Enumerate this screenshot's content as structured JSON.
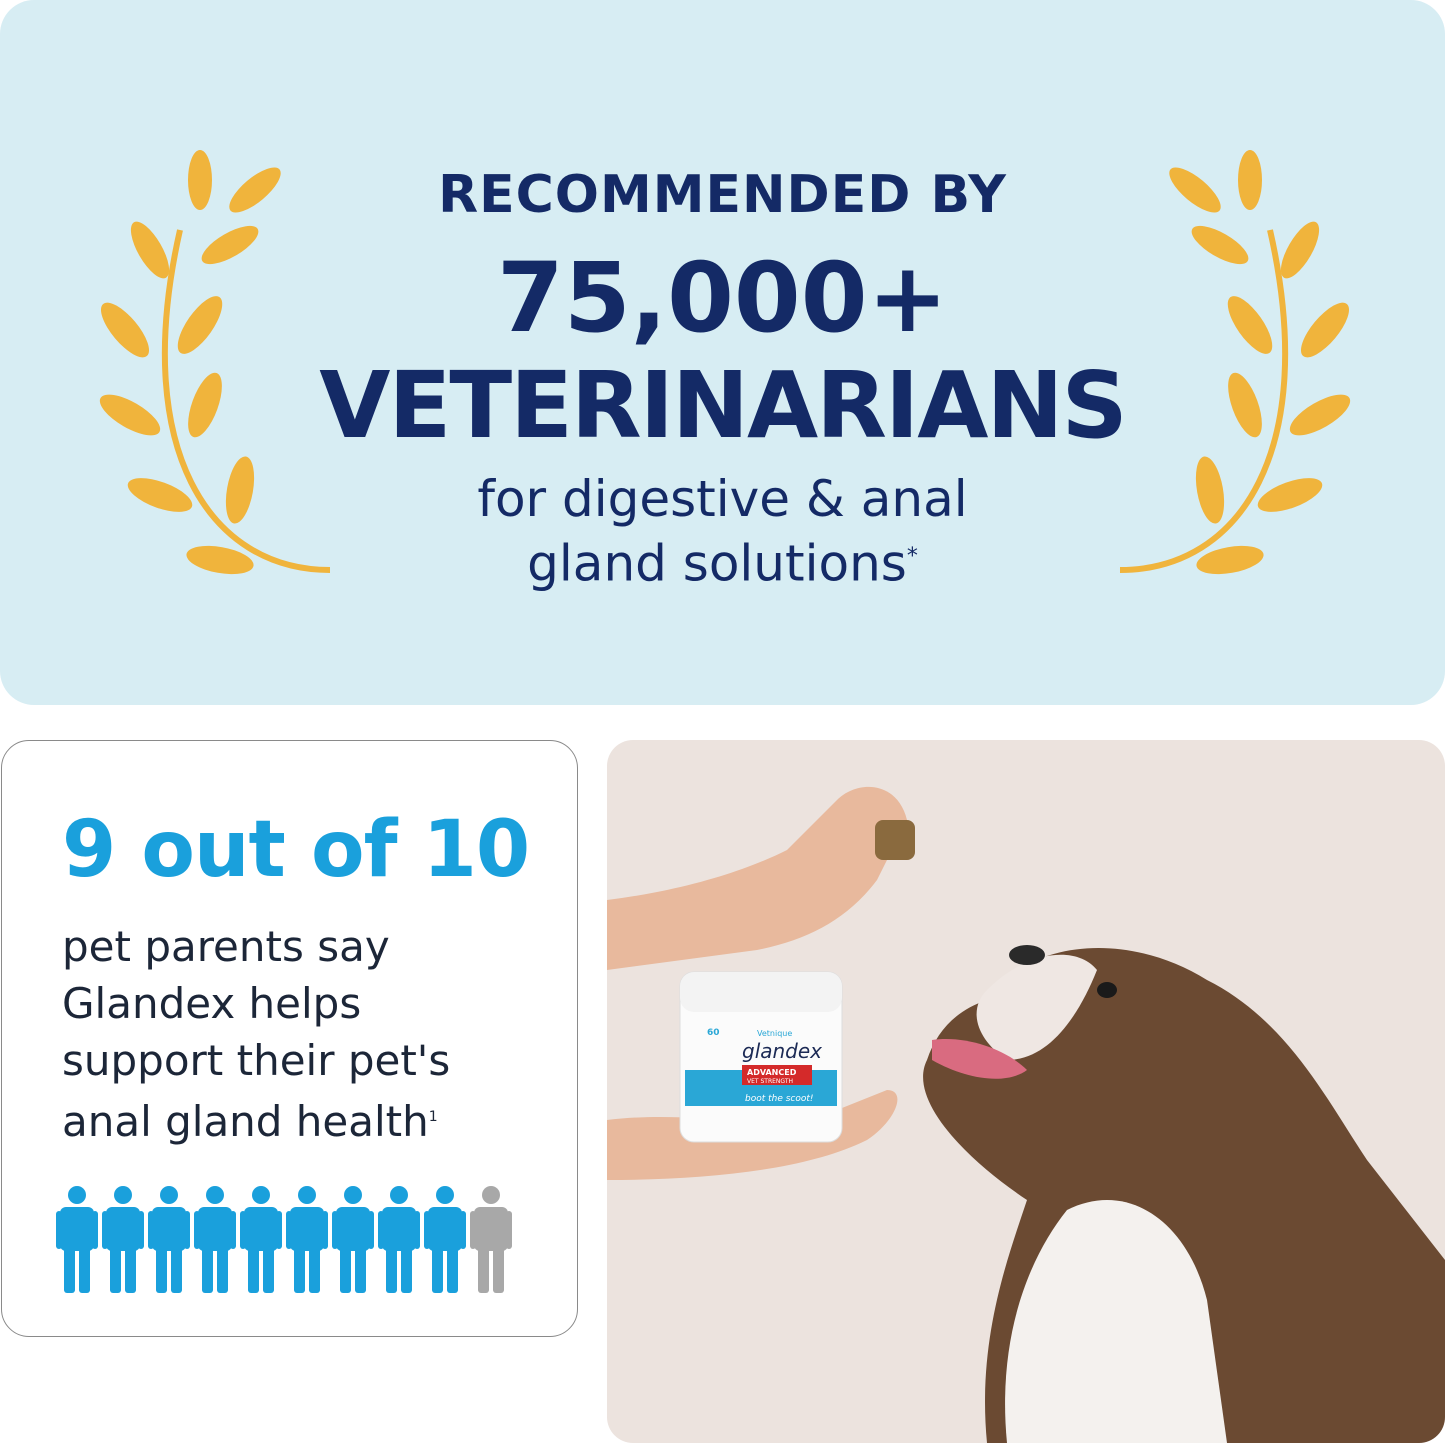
{
  "banner": {
    "line1": "RECOMMENDED BY",
    "count": "75,000+",
    "line2": "VETERINARIANS",
    "sub1": "for digestive & anal",
    "sub2": "gland solutions",
    "footnote_mark": "*"
  },
  "stat_card": {
    "headline": "9 out of 10",
    "lines": [
      "pet parents say",
      "Glandex helps",
      "support their pet's",
      "anal gland health"
    ],
    "footnote_mark": "1",
    "people_total": 10,
    "people_filled": 9
  },
  "product": {
    "brand": "Vetnique",
    "name": "glandex",
    "tagline": "ADVANCED",
    "tagline2": "VET STRENGTH",
    "slogan": "boot the scoot!",
    "count": "60"
  },
  "colors": {
    "navy": "#142a66",
    "blue": "#1aa0dc",
    "gold": "#f0b43c",
    "grey": "#a8a8a8",
    "banner_bg": "#d7edf3"
  }
}
